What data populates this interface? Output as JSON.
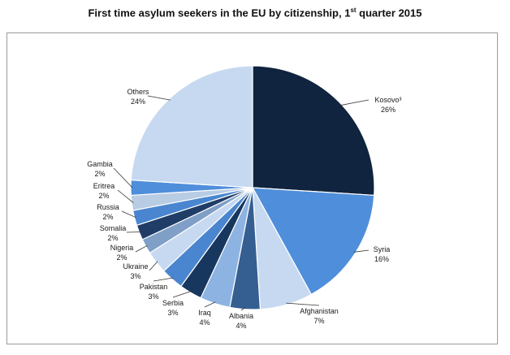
{
  "chart_data": {
    "type": "pie",
    "title_main": "First time asylum seekers in the EU by citizenship, 1",
    "title_sup": "st",
    "title_tail": " quarter 2015",
    "start_angle_deg": 0,
    "direction": "clockwise",
    "slices": [
      {
        "label": "Kosovo³",
        "value": 26,
        "display": "26%",
        "color": "#10243f"
      },
      {
        "label": "Syria",
        "value": 16,
        "display": "16%",
        "color": "#4f8edb"
      },
      {
        "label": "Afghanistan",
        "value": 7,
        "display": "7%",
        "color": "#c6d9f1"
      },
      {
        "label": "Albania",
        "value": 4,
        "display": "4%",
        "color": "#365f91"
      },
      {
        "label": "Iraq",
        "value": 4,
        "display": "4%",
        "color": "#8db3e2"
      },
      {
        "label": "Serbia",
        "value": 3,
        "display": "3%",
        "color": "#17375e"
      },
      {
        "label": "Pakistan",
        "value": 3,
        "display": "3%",
        "color": "#4a86d0"
      },
      {
        "label": "Ukraine",
        "value": 3,
        "display": "3%",
        "color": "#c6d9f1"
      },
      {
        "label": "Nigeria",
        "value": 2,
        "display": "2%",
        "color": "#7f9fc7"
      },
      {
        "label": "Somalia",
        "value": 2,
        "display": "2%",
        "color": "#1f3d66"
      },
      {
        "label": "Russia",
        "value": 2,
        "display": "2%",
        "color": "#4a86d0"
      },
      {
        "label": "Eritrea",
        "value": 2,
        "display": "2%",
        "color": "#b8cce4"
      },
      {
        "label": "Gambia",
        "value": 2,
        "display": "2%",
        "color": "#4f8edb"
      },
      {
        "label": "Others",
        "value": 24,
        "display": "24%",
        "color": "#c6d9f1"
      }
    ]
  }
}
